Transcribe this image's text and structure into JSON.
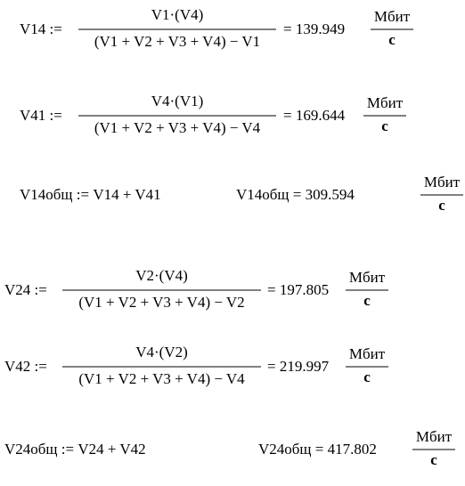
{
  "rows": [
    {
      "lhs": "V14 :=",
      "numerator": "V1·(V4)",
      "denominator": "(V1 + V2 + V3 + V4) − V1",
      "result": "= 139.949",
      "unit": {
        "numerator": "Мбит",
        "denominator": "с"
      }
    },
    {
      "lhs": "V41 :=",
      "numerator": "V4·(V1)",
      "denominator": "(V1 + V2 + V3 + V4) − V4",
      "result": "= 169.644",
      "unit": {
        "numerator": "Мбит",
        "denominator": "с"
      }
    },
    {
      "definition": "V14общ := V14 + V41",
      "result": "V14общ = 309.594",
      "unit": {
        "numerator": "Мбит",
        "denominator": "с"
      }
    },
    {
      "lhs": "V24 :=",
      "numerator": "V2·(V4)",
      "denominator": "(V1 + V2 + V3 + V4) − V2",
      "result": "= 197.805",
      "unit": {
        "numerator": "Мбит",
        "denominator": "с"
      }
    },
    {
      "lhs": "V42 :=",
      "numerator": "V4·(V2)",
      "denominator": "(V1 + V2 + V3 + V4) − V4",
      "result": "= 219.997",
      "unit": {
        "numerator": "Мбит",
        "denominator": "с"
      }
    },
    {
      "definition": "V24общ := V24 + V42",
      "result": "V24общ = 417.802",
      "unit": {
        "numerator": "Мбит",
        "denominator": "с"
      }
    }
  ]
}
